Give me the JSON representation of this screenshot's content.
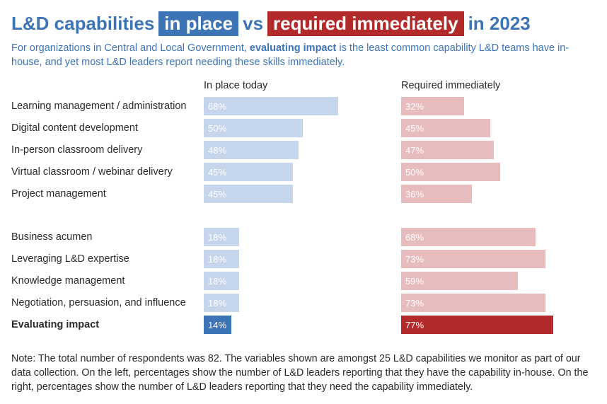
{
  "title": {
    "part1": "L&D capabilities",
    "box1": "in place",
    "part2": "vs",
    "box2": "required immediately",
    "part3": "in 2023"
  },
  "subtitle": {
    "pre": "For organizations in Central and Local Government, ",
    "bold": "evaluating impact",
    "post": " is the least common capability L&D teams have in-house, and yet most L&D leaders report needing these skills immediately."
  },
  "colors": {
    "left_bar": "#c5d6ec",
    "right_bar": "#e7bcbc",
    "left_highlight": "#3d74b5",
    "right_highlight": "#b32a2a"
  },
  "chart_data": {
    "type": "bar",
    "orientation": "horizontal",
    "categories": [
      "Learning management / administration",
      "Digital content development",
      "In-person classroom delivery",
      "Virtual classroom / webinar delivery",
      "Project management",
      "Business acumen",
      "Leveraging L&D expertise",
      "Knowledge management",
      "Negotiation, persuasion, and influence",
      "Evaluating impact"
    ],
    "highlighted_category": "Evaluating impact",
    "series": [
      {
        "name": "In place today",
        "values": [
          68,
          50,
          48,
          45,
          45,
          18,
          18,
          18,
          18,
          14
        ]
      },
      {
        "name": "Required immediately",
        "values": [
          32,
          45,
          47,
          50,
          36,
          68,
          73,
          59,
          73,
          77
        ]
      }
    ],
    "unit": "%"
  },
  "note": "Note: The total number of respondents was 82. The variables shown are amongst 25 L&D capabilities we monitor as part of our data collection. On the left, percentages show the number of L&D leaders reporting that they have the capability in-house. On the right, percentages show the number of L&D leaders reporting that they need the capability immediately."
}
